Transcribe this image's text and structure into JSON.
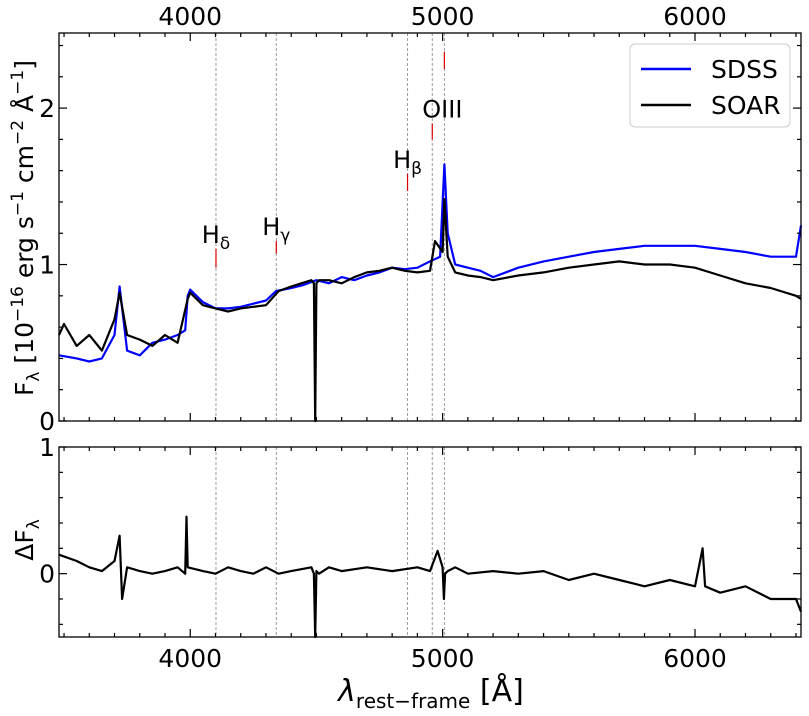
{
  "chart_data": [
    {
      "panel": "top",
      "type": "line",
      "xlabel_main": "λ",
      "xlabel_sub": "rest−frame",
      "xlabel_unit": "[Å]",
      "ylabel": "F_λ [10^−16 erg s^−1 cm^−2 Å^−1]",
      "ylabel_parts": {
        "f": "F",
        "sub": "λ",
        "a": " [10",
        "e1": "−16",
        "b": " erg s",
        "e2": "−1",
        "c": " cm",
        "e3": "−2",
        "d": " Å",
        "e4": "−1",
        "e": "]"
      },
      "xlim": [
        3480,
        6420
      ],
      "ylim": [
        0,
        2.48
      ],
      "x_ticks": [
        4000,
        5000,
        6000
      ],
      "x_tick_labels": [
        "4000",
        "5000",
        "6000"
      ],
      "y_ticks": [
        0,
        1,
        2
      ],
      "y_tick_labels": [
        "0",
        "1",
        "2"
      ],
      "legend": {
        "position": "top-right",
        "entries": [
          {
            "name": "SDSS",
            "color": "#0000ff"
          },
          {
            "name": "SOAR",
            "color": "#000000"
          }
        ]
      },
      "emission_lines": [
        {
          "name": "Hδ",
          "base": "H",
          "sub": "δ",
          "wavelength": 4102,
          "marker_y": [
            0.98,
            1.1
          ]
        },
        {
          "name": "Hγ",
          "base": "H",
          "sub": "γ",
          "wavelength": 4341,
          "marker_y": [
            1.07,
            1.15
          ]
        },
        {
          "name": "Hβ",
          "base": "H",
          "sub": "β",
          "wavelength": 4861,
          "marker_y": [
            1.47,
            1.58
          ]
        },
        {
          "name": "OIII",
          "base": "OIII",
          "sub": "",
          "wavelength": 4959,
          "marker_y": [
            1.8,
            1.9
          ]
        },
        {
          "name": "",
          "base": "",
          "sub": "",
          "wavelength": 5007,
          "marker_y": [
            2.25,
            2.36
          ]
        }
      ],
      "series": [
        {
          "name": "SDSS",
          "color": "#0000ff",
          "x": [
            3480,
            3550,
            3600,
            3650,
            3700,
            3720,
            3750,
            3800,
            3850,
            3900,
            3950,
            3980,
            3990,
            4000,
            4050,
            4100,
            4150,
            4200,
            4250,
            4300,
            4340,
            4400,
            4450,
            4500,
            4550,
            4600,
            4650,
            4700,
            4750,
            4800,
            4850,
            4900,
            4950,
            4990,
            5007,
            5020,
            5050,
            5100,
            5150,
            5200,
            5300,
            5400,
            5500,
            5600,
            5700,
            5800,
            5900,
            6000,
            6100,
            6200,
            6300,
            6400,
            6420
          ],
          "y": [
            0.42,
            0.4,
            0.38,
            0.4,
            0.55,
            0.86,
            0.45,
            0.42,
            0.5,
            0.52,
            0.55,
            0.58,
            0.8,
            0.84,
            0.76,
            0.72,
            0.72,
            0.73,
            0.75,
            0.77,
            0.83,
            0.85,
            0.87,
            0.9,
            0.88,
            0.92,
            0.9,
            0.93,
            0.95,
            0.98,
            0.97,
            0.98,
            1.02,
            1.05,
            1.64,
            1.2,
            1.0,
            0.98,
            0.96,
            0.92,
            0.98,
            1.02,
            1.05,
            1.08,
            1.1,
            1.12,
            1.12,
            1.12,
            1.1,
            1.08,
            1.05,
            1.05,
            1.25
          ]
        },
        {
          "name": "SOAR",
          "color": "#000000",
          "x": [
            3480,
            3500,
            3550,
            3600,
            3650,
            3700,
            3720,
            3750,
            3800,
            3850,
            3900,
            3950,
            3990,
            4000,
            4050,
            4100,
            4150,
            4200,
            4250,
            4300,
            4350,
            4400,
            4480,
            4490,
            4495,
            4500,
            4510,
            4550,
            4600,
            4650,
            4700,
            4750,
            4800,
            4850,
            4900,
            4950,
            4970,
            5000,
            5007,
            5020,
            5050,
            5100,
            5150,
            5200,
            5300,
            5400,
            5500,
            5600,
            5700,
            5800,
            5900,
            6000,
            6100,
            6200,
            6300,
            6400,
            6420
          ],
          "y": [
            0.55,
            0.62,
            0.48,
            0.55,
            0.45,
            0.65,
            0.82,
            0.55,
            0.52,
            0.48,
            0.55,
            0.5,
            0.78,
            0.82,
            0.74,
            0.72,
            0.7,
            0.72,
            0.73,
            0.74,
            0.83,
            0.86,
            0.9,
            0.88,
            0.0,
            0.88,
            0.9,
            0.9,
            0.88,
            0.92,
            0.95,
            0.96,
            0.98,
            0.96,
            0.95,
            0.96,
            1.15,
            1.08,
            1.42,
            1.05,
            0.95,
            0.93,
            0.92,
            0.9,
            0.93,
            0.95,
            0.98,
            1.0,
            1.02,
            1.0,
            1.0,
            0.98,
            0.93,
            0.88,
            0.85,
            0.8,
            0.78
          ]
        }
      ]
    },
    {
      "panel": "bottom",
      "type": "line",
      "ylabel": "ΔF_λ",
      "ylabel_parts": {
        "base": "ΔF",
        "sub": "λ"
      },
      "xlim": [
        3480,
        6420
      ],
      "ylim": [
        -0.5,
        1.0
      ],
      "x_ticks": [
        4000,
        5000,
        6000
      ],
      "x_tick_labels": [
        "4000",
        "5000",
        "6000"
      ],
      "y_ticks": [
        0,
        1
      ],
      "y_tick_labels": [
        "0",
        "1"
      ],
      "series": [
        {
          "name": "",
          "color": "#000000",
          "x": [
            3480,
            3550,
            3600,
            3650,
            3700,
            3720,
            3730,
            3750,
            3800,
            3850,
            3900,
            3950,
            3980,
            3985,
            3990,
            4050,
            4100,
            4150,
            4200,
            4250,
            4300,
            4350,
            4400,
            4480,
            4490,
            4495,
            4500,
            4510,
            4550,
            4600,
            4700,
            4800,
            4900,
            4950,
            4980,
            5000,
            5005,
            5010,
            5020,
            5050,
            5100,
            5200,
            5300,
            5400,
            5500,
            5600,
            5700,
            5800,
            5900,
            6000,
            6030,
            6040,
            6100,
            6200,
            6300,
            6400,
            6420
          ],
          "y": [
            0.15,
            0.1,
            0.05,
            0.02,
            0.1,
            0.3,
            -0.2,
            0.05,
            0.02,
            0.0,
            0.02,
            0.05,
            0.0,
            0.45,
            0.05,
            0.02,
            0.0,
            0.05,
            0.02,
            0.0,
            0.05,
            0.0,
            0.02,
            0.05,
            0.0,
            -0.5,
            0.02,
            0.0,
            0.05,
            0.02,
            0.05,
            0.02,
            0.05,
            0.02,
            0.18,
            0.05,
            -0.2,
            0.0,
            0.02,
            0.05,
            0.0,
            0.02,
            0.0,
            0.02,
            -0.05,
            0.0,
            -0.05,
            -0.1,
            -0.05,
            -0.1,
            0.2,
            -0.1,
            -0.15,
            -0.1,
            -0.2,
            -0.2,
            -0.3
          ]
        }
      ]
    }
  ]
}
